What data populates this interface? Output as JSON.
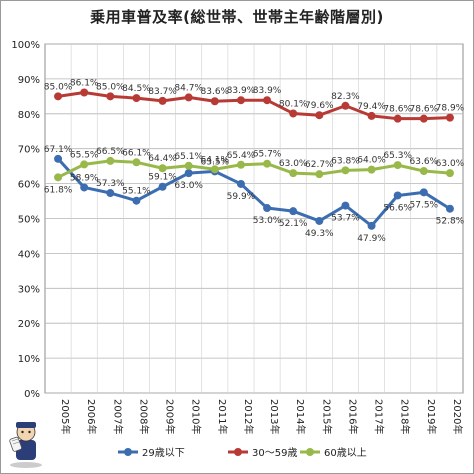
{
  "chart_data": {
    "type": "line",
    "title": "乗用車普及率(総世帯、世帯主年齢階層別)",
    "xlabel": "",
    "ylabel": "",
    "ylim": [
      0,
      100
    ],
    "yticks": [
      0,
      10,
      20,
      30,
      40,
      50,
      60,
      70,
      80,
      90,
      100
    ],
    "ytick_labels": [
      "0%",
      "10%",
      "20%",
      "30%",
      "40%",
      "50%",
      "60%",
      "70%",
      "80%",
      "90%",
      "100%"
    ],
    "categories": [
      "2005年",
      "2006年",
      "2007年",
      "2008年",
      "2009年",
      "2010年",
      "2011年",
      "2012年",
      "2013年",
      "2014年",
      "2015年",
      "2016年",
      "2017年",
      "2018年",
      "2019年",
      "2020年"
    ],
    "grid": true,
    "legend_position": "bottom",
    "series": [
      {
        "name": "29歳以下",
        "color": "#3d6db1",
        "values": [
          67.1,
          58.9,
          57.3,
          55.1,
          59.1,
          63.0,
          63.5,
          59.9,
          53.0,
          52.1,
          49.3,
          53.7,
          47.9,
          56.6,
          57.5,
          52.8
        ],
        "labels": [
          "67.1%",
          "58.9%",
          "57.3%",
          "55.1%",
          "59.1%",
          "63.0%",
          "63.5%",
          "59.9%",
          "53.0%",
          "52.1%",
          "49.3%",
          "53.7%",
          "47.9%",
          "56.6%",
          "57.5%",
          "52.8%"
        ]
      },
      {
        "name": "30～59歳",
        "color": "#b83a35",
        "values": [
          85.0,
          86.1,
          85.0,
          84.5,
          83.7,
          84.7,
          83.6,
          83.9,
          83.9,
          80.1,
          79.6,
          82.3,
          79.4,
          78.6,
          78.6,
          78.9
        ],
        "labels": [
          "85.0%",
          "86.1%",
          "85.0%",
          "84.5%",
          "83.7%",
          "84.7%",
          "83.6%",
          "83.9%",
          "83.9%",
          "80.1%",
          "79.6%",
          "82.3%",
          "79.4%",
          "78.6%",
          "78.6%",
          "78.9%"
        ]
      },
      {
        "name": "60歳以上",
        "color": "#98b94a",
        "values": [
          61.8,
          65.5,
          66.5,
          66.1,
          64.4,
          65.1,
          64.1,
          65.4,
          65.7,
          63.0,
          62.7,
          63.8,
          64.0,
          65.3,
          63.6,
          63.0
        ],
        "labels": [
          "61.8%",
          "65.5%",
          "66.5%",
          "66.1%",
          "64.4%",
          "65.1%",
          "64.1%",
          "65.4%",
          "65.7%",
          "63.0%",
          "62.7%",
          "63.8%",
          "64.0%",
          "65.3%",
          "63.6%",
          "63.0%"
        ]
      }
    ]
  }
}
